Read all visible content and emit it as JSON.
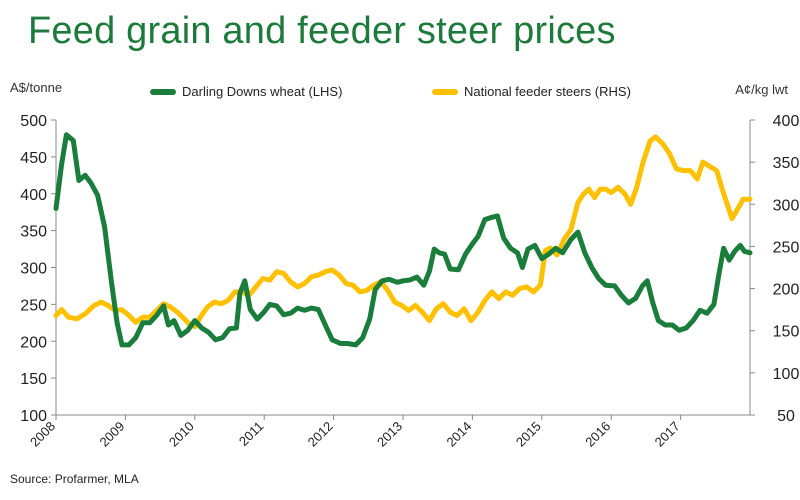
{
  "title": "Feed grain and feeder steer prices",
  "source": "Source: Profarmer, MLA",
  "colors": {
    "wheat": "#1a7d3c",
    "steers": "#ffc000",
    "title": "#1e7a3c"
  },
  "chart_data": {
    "type": "line",
    "ylabel_left": "A$/tonne",
    "ylabel_right": "A¢/kg lwt",
    "ylim_left": [
      100,
      500
    ],
    "ylim_right": [
      50,
      400
    ],
    "xlim": [
      2008,
      2018
    ],
    "y_ticks_left": [
      "500",
      "450",
      "400",
      "350",
      "300",
      "250",
      "200",
      "150",
      "100"
    ],
    "y_ticks_right": [
      "400",
      "350",
      "300",
      "250",
      "200",
      "150",
      "100",
      "50"
    ],
    "x_ticks": [
      "2008",
      "2009",
      "2010",
      "2011",
      "2012",
      "2013",
      "2014",
      "2015",
      "2016",
      "2017"
    ],
    "legend_position": "top",
    "grid": false,
    "series": [
      {
        "name": "Darling Downs wheat (LHS)",
        "axis": "left",
        "points": [
          [
            2008.0,
            380
          ],
          [
            2008.08,
            440
          ],
          [
            2008.15,
            480
          ],
          [
            2008.25,
            472
          ],
          [
            2008.33,
            418
          ],
          [
            2008.42,
            425
          ],
          [
            2008.5,
            415
          ],
          [
            2008.6,
            398
          ],
          [
            2008.7,
            355
          ],
          [
            2008.8,
            280
          ],
          [
            2008.88,
            225
          ],
          [
            2008.95,
            195
          ],
          [
            2009.05,
            195
          ],
          [
            2009.15,
            205
          ],
          [
            2009.25,
            225
          ],
          [
            2009.35,
            225
          ],
          [
            2009.45,
            235
          ],
          [
            2009.55,
            248
          ],
          [
            2009.62,
            222
          ],
          [
            2009.7,
            228
          ],
          [
            2009.8,
            208
          ],
          [
            2009.9,
            215
          ],
          [
            2010.0,
            228
          ],
          [
            2010.1,
            218
          ],
          [
            2010.2,
            212
          ],
          [
            2010.3,
            202
          ],
          [
            2010.4,
            205
          ],
          [
            2010.5,
            217
          ],
          [
            2010.6,
            218
          ],
          [
            2010.65,
            265
          ],
          [
            2010.72,
            282
          ],
          [
            2010.8,
            243
          ],
          [
            2010.9,
            230
          ],
          [
            2011.0,
            240
          ],
          [
            2011.08,
            250
          ],
          [
            2011.18,
            248
          ],
          [
            2011.28,
            236
          ],
          [
            2011.38,
            238
          ],
          [
            2011.48,
            245
          ],
          [
            2011.58,
            242
          ],
          [
            2011.68,
            245
          ],
          [
            2011.78,
            243
          ],
          [
            2011.88,
            222
          ],
          [
            2011.98,
            202
          ],
          [
            2012.1,
            197
          ],
          [
            2012.2,
            197
          ],
          [
            2012.32,
            195
          ],
          [
            2012.42,
            205
          ],
          [
            2012.52,
            230
          ],
          [
            2012.6,
            270
          ],
          [
            2012.7,
            282
          ],
          [
            2012.8,
            284
          ],
          [
            2012.92,
            280
          ],
          [
            2013.0,
            282
          ],
          [
            2013.1,
            283
          ],
          [
            2013.2,
            287
          ],
          [
            2013.3,
            276
          ],
          [
            2013.38,
            295
          ],
          [
            2013.45,
            325
          ],
          [
            2013.52,
            320
          ],
          [
            2013.6,
            318
          ],
          [
            2013.68,
            298
          ],
          [
            2013.8,
            297
          ],
          [
            2013.9,
            318
          ],
          [
            2014.0,
            332
          ],
          [
            2014.08,
            342
          ],
          [
            2014.18,
            365
          ],
          [
            2014.28,
            368
          ],
          [
            2014.36,
            370
          ],
          [
            2014.45,
            340
          ],
          [
            2014.55,
            326
          ],
          [
            2014.65,
            320
          ],
          [
            2014.72,
            300
          ],
          [
            2014.8,
            325
          ],
          [
            2014.9,
            330
          ],
          [
            2015.0,
            312
          ],
          [
            2015.1,
            318
          ],
          [
            2015.2,
            326
          ],
          [
            2015.3,
            320
          ],
          [
            2015.42,
            338
          ],
          [
            2015.52,
            348
          ],
          [
            2015.62,
            320
          ],
          [
            2015.72,
            300
          ],
          [
            2015.82,
            285
          ],
          [
            2015.92,
            276
          ],
          [
            2016.05,
            275
          ],
          [
            2016.15,
            262
          ],
          [
            2016.25,
            252
          ],
          [
            2016.35,
            258
          ],
          [
            2016.45,
            275
          ],
          [
            2016.52,
            282
          ],
          [
            2016.6,
            252
          ],
          [
            2016.68,
            228
          ],
          [
            2016.78,
            222
          ],
          [
            2016.88,
            222
          ],
          [
            2016.98,
            215
          ],
          [
            2017.08,
            218
          ],
          [
            2017.18,
            228
          ],
          [
            2017.28,
            242
          ],
          [
            2017.38,
            238
          ],
          [
            2017.48,
            250
          ],
          [
            2017.55,
            290
          ],
          [
            2017.62,
            326
          ],
          [
            2017.7,
            310
          ],
          [
            2017.78,
            322
          ],
          [
            2017.86,
            330
          ],
          [
            2017.92,
            322
          ],
          [
            2018.0,
            320
          ]
        ]
      },
      {
        "name": "National feeder steers (RHS)",
        "axis": "right",
        "points": [
          [
            2008.0,
            168
          ],
          [
            2008.08,
            175
          ],
          [
            2008.18,
            166
          ],
          [
            2008.3,
            164
          ],
          [
            2008.42,
            170
          ],
          [
            2008.55,
            180
          ],
          [
            2008.65,
            184
          ],
          [
            2008.75,
            180
          ],
          [
            2008.85,
            174
          ],
          [
            2008.95,
            175
          ],
          [
            2009.05,
            168
          ],
          [
            2009.15,
            160
          ],
          [
            2009.25,
            166
          ],
          [
            2009.35,
            166
          ],
          [
            2009.45,
            174
          ],
          [
            2009.55,
            182
          ],
          [
            2009.65,
            178
          ],
          [
            2009.75,
            172
          ],
          [
            2009.85,
            164
          ],
          [
            2009.92,
            158
          ],
          [
            2010.0,
            155
          ],
          [
            2010.08,
            166
          ],
          [
            2010.18,
            178
          ],
          [
            2010.28,
            184
          ],
          [
            2010.38,
            182
          ],
          [
            2010.48,
            186
          ],
          [
            2010.58,
            196
          ],
          [
            2010.68,
            196
          ],
          [
            2010.78,
            192
          ],
          [
            2010.88,
            202
          ],
          [
            2010.98,
            212
          ],
          [
            2011.08,
            210
          ],
          [
            2011.18,
            220
          ],
          [
            2011.28,
            218
          ],
          [
            2011.38,
            208
          ],
          [
            2011.48,
            202
          ],
          [
            2011.58,
            206
          ],
          [
            2011.68,
            214
          ],
          [
            2011.78,
            216
          ],
          [
            2011.88,
            220
          ],
          [
            2011.98,
            222
          ],
          [
            2012.08,
            216
          ],
          [
            2012.18,
            206
          ],
          [
            2012.28,
            204
          ],
          [
            2012.38,
            196
          ],
          [
            2012.48,
            198
          ],
          [
            2012.58,
            204
          ],
          [
            2012.68,
            208
          ],
          [
            2012.78,
            198
          ],
          [
            2012.88,
            184
          ],
          [
            2012.98,
            180
          ],
          [
            2013.08,
            174
          ],
          [
            2013.18,
            180
          ],
          [
            2013.28,
            172
          ],
          [
            2013.38,
            162
          ],
          [
            2013.48,
            176
          ],
          [
            2013.58,
            182
          ],
          [
            2013.68,
            172
          ],
          [
            2013.78,
            168
          ],
          [
            2013.88,
            176
          ],
          [
            2013.98,
            162
          ],
          [
            2014.08,
            172
          ],
          [
            2014.18,
            186
          ],
          [
            2014.28,
            196
          ],
          [
            2014.38,
            188
          ],
          [
            2014.48,
            196
          ],
          [
            2014.58,
            192
          ],
          [
            2014.68,
            200
          ],
          [
            2014.78,
            202
          ],
          [
            2014.88,
            196
          ],
          [
            2014.98,
            204
          ],
          [
            2015.05,
            245
          ],
          [
            2015.12,
            248
          ],
          [
            2015.22,
            240
          ],
          [
            2015.32,
            258
          ],
          [
            2015.42,
            270
          ],
          [
            2015.52,
            302
          ],
          [
            2015.6,
            312
          ],
          [
            2015.68,
            318
          ],
          [
            2015.76,
            308
          ],
          [
            2015.84,
            318
          ],
          [
            2015.92,
            318
          ],
          [
            2016.0,
            314
          ],
          [
            2016.1,
            320
          ],
          [
            2016.2,
            312
          ],
          [
            2016.28,
            300
          ],
          [
            2016.36,
            318
          ],
          [
            2016.46,
            350
          ],
          [
            2016.56,
            375
          ],
          [
            2016.64,
            380
          ],
          [
            2016.74,
            372
          ],
          [
            2016.84,
            360
          ],
          [
            2016.94,
            342
          ],
          [
            2017.04,
            340
          ],
          [
            2017.14,
            340
          ],
          [
            2017.24,
            330
          ],
          [
            2017.32,
            350
          ],
          [
            2017.42,
            345
          ],
          [
            2017.52,
            340
          ],
          [
            2017.6,
            318
          ],
          [
            2017.68,
            298
          ],
          [
            2017.74,
            283
          ],
          [
            2017.82,
            294
          ],
          [
            2017.9,
            306
          ],
          [
            2018.0,
            306
          ]
        ]
      }
    ]
  }
}
